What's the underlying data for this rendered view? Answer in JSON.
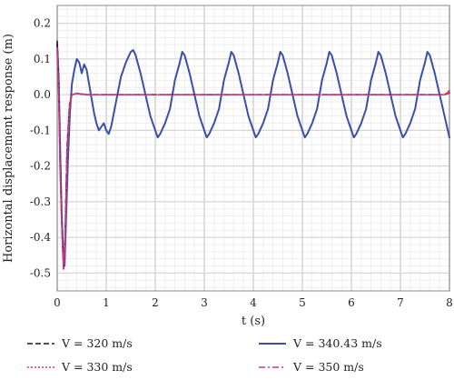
{
  "chart_data": {
    "type": "line",
    "title": "",
    "xlabel": "t (s)",
    "ylabel": "Horizontal displacement response (m)",
    "xlim": [
      0,
      8
    ],
    "ylim": [
      -0.55,
      0.25
    ],
    "x_ticks": [
      "0",
      "1",
      "2",
      "3",
      "4",
      "5",
      "6",
      "7",
      "8"
    ],
    "y_ticks": [
      "0.2",
      "0.1",
      "0.0",
      "-0.1",
      "-0.2",
      "-0.3",
      "-0.4",
      "-0.5"
    ],
    "grid": true,
    "legend_position": "bottom",
    "series": [
      {
        "name": "V = 320 m/s",
        "color": "#1a1a1a",
        "style": "dashed",
        "x": [
          0,
          0.03,
          0.06,
          0.1,
          0.13,
          0.16,
          0.2,
          0.25,
          0.3,
          0.4,
          0.6,
          1,
          2,
          3,
          4,
          5,
          6,
          7,
          7.9,
          8
        ],
        "y": [
          0.15,
          0.02,
          -0.2,
          -0.38,
          -0.49,
          -0.4,
          -0.15,
          -0.03,
          0.0,
          0.003,
          0.0,
          0.0,
          0.0,
          0.0,
          0.0,
          0.0,
          0.0,
          0.0,
          0.0,
          0.005
        ]
      },
      {
        "name": "V = 330 m/s",
        "color": "#e8334a",
        "style": "dotted",
        "x": [
          0,
          0.03,
          0.06,
          0.1,
          0.13,
          0.16,
          0.2,
          0.25,
          0.3,
          0.4,
          0.6,
          1,
          2,
          3,
          4,
          5,
          6,
          7,
          7.9,
          8
        ],
        "y": [
          0.12,
          0.0,
          -0.22,
          -0.4,
          -0.49,
          -0.42,
          -0.17,
          -0.04,
          0.0,
          0.004,
          0.0,
          0.0,
          0.0,
          0.0,
          0.0,
          0.0,
          0.0,
          0.0,
          0.0,
          0.012
        ]
      },
      {
        "name": "V = 340.43 m/s",
        "color": "#3b4fa8",
        "style": "solid",
        "x": [
          0,
          0.03,
          0.06,
          0.09,
          0.12,
          0.15,
          0.18,
          0.22,
          0.26,
          0.3,
          0.35,
          0.4,
          0.45,
          0.5,
          0.55,
          0.6,
          0.65,
          0.7,
          0.75,
          0.8,
          0.85,
          0.9,
          0.95,
          1.0,
          1.05,
          1.1,
          1.2,
          1.3,
          1.4,
          1.5,
          1.55,
          1.6,
          1.7,
          1.8,
          1.9,
          2.0,
          2.05,
          2.1,
          2.2,
          2.3,
          2.4,
          2.5,
          2.55,
          2.6,
          2.7,
          2.8,
          2.9,
          3.0,
          3.05,
          3.1,
          3.2,
          3.3,
          3.4,
          3.5,
          3.55,
          3.6,
          3.7,
          3.8,
          3.9,
          4.0,
          4.05,
          4.1,
          4.2,
          4.3,
          4.4,
          4.5,
          4.55,
          4.6,
          4.7,
          4.8,
          4.9,
          5.0,
          5.05,
          5.1,
          5.2,
          5.3,
          5.4,
          5.5,
          5.55,
          5.6,
          5.7,
          5.8,
          5.9,
          6.0,
          6.05,
          6.1,
          6.2,
          6.3,
          6.4,
          6.5,
          6.55,
          6.6,
          6.7,
          6.8,
          6.9,
          7.0,
          7.05,
          7.1,
          7.2,
          7.3,
          7.4,
          7.5,
          7.55,
          7.6,
          7.7,
          7.8,
          7.9,
          8.0
        ],
        "y": [
          0.14,
          0.05,
          -0.15,
          -0.33,
          -0.44,
          -0.48,
          -0.35,
          -0.18,
          -0.05,
          0.03,
          0.07,
          0.1,
          0.09,
          0.06,
          0.085,
          0.07,
          0.03,
          -0.01,
          -0.05,
          -0.08,
          -0.1,
          -0.09,
          -0.08,
          -0.1,
          -0.11,
          -0.09,
          -0.02,
          0.05,
          0.09,
          0.12,
          0.125,
          0.11,
          0.06,
          0.0,
          -0.06,
          -0.1,
          -0.12,
          -0.11,
          -0.08,
          -0.04,
          0.04,
          0.09,
          0.12,
          0.11,
          0.06,
          0.0,
          -0.06,
          -0.1,
          -0.12,
          -0.11,
          -0.08,
          -0.04,
          0.04,
          0.09,
          0.12,
          0.11,
          0.06,
          0.0,
          -0.06,
          -0.1,
          -0.12,
          -0.11,
          -0.08,
          -0.04,
          0.04,
          0.09,
          0.12,
          0.11,
          0.06,
          0.0,
          -0.06,
          -0.1,
          -0.12,
          -0.11,
          -0.08,
          -0.04,
          0.04,
          0.09,
          0.12,
          0.11,
          0.06,
          0.0,
          -0.06,
          -0.1,
          -0.12,
          -0.11,
          -0.08,
          -0.04,
          0.04,
          0.09,
          0.12,
          0.11,
          0.06,
          0.0,
          -0.06,
          -0.1,
          -0.12,
          -0.11,
          -0.08,
          -0.04,
          0.04,
          0.09,
          0.12,
          0.11,
          0.06,
          0.0,
          -0.06,
          -0.12
        ]
      },
      {
        "name": "V = 350 m/s",
        "color": "#c0389a",
        "style": "dashdot",
        "x": [
          0,
          0.03,
          0.06,
          0.1,
          0.13,
          0.16,
          0.2,
          0.25,
          0.3,
          0.4,
          0.6,
          1,
          2,
          3,
          4,
          5,
          6,
          7,
          7.9,
          8
        ],
        "y": [
          0.13,
          0.01,
          -0.21,
          -0.39,
          -0.48,
          -0.41,
          -0.16,
          -0.03,
          0.0,
          0.003,
          0.0,
          0.0,
          0.0,
          0.0,
          0.0,
          0.0,
          0.0,
          0.0,
          0.0,
          0.004
        ]
      }
    ]
  }
}
